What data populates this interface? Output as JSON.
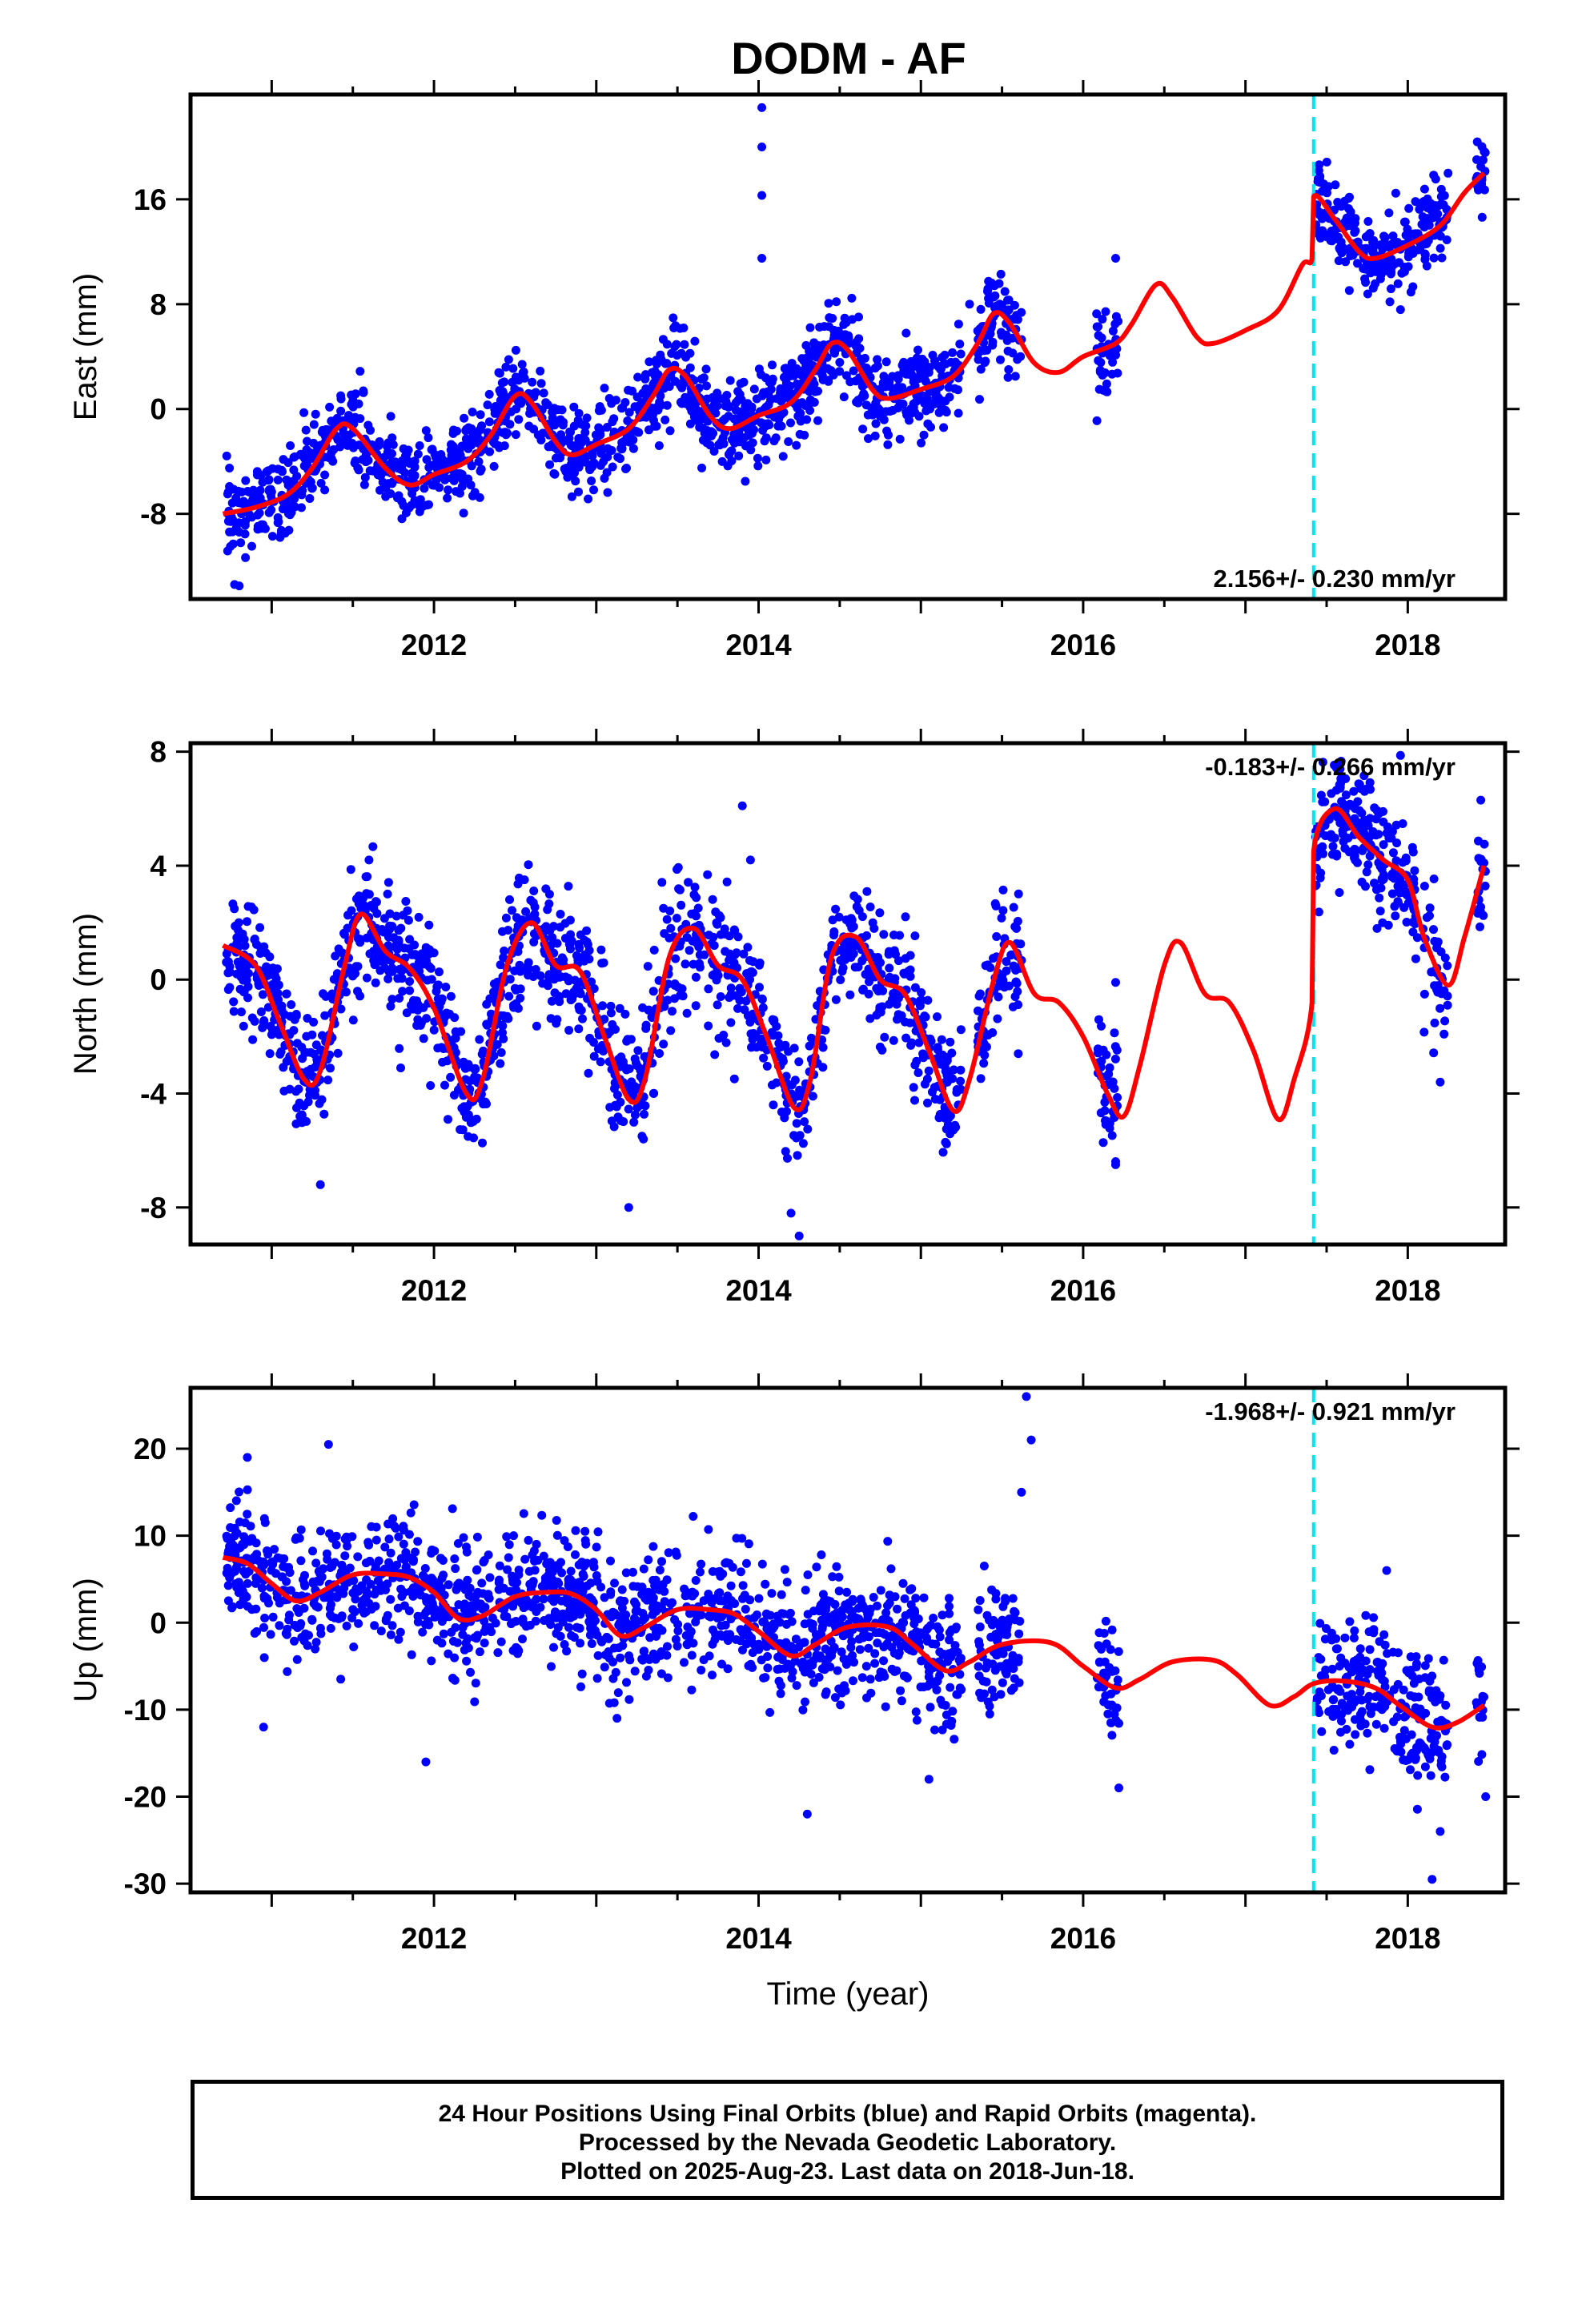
{
  "title": "DODM - AF",
  "footer": {
    "line1": "24 Hour Positions Using Final Orbits (blue) and Rapid Orbits (magenta).",
    "line2": "Processed by the Nevada Geodetic Laboratory.",
    "line3": "Plotted on 2025-Aug-23. Last data on 2018-Jun-18."
  },
  "colors": {
    "data": "#0000ff",
    "model": "#ff0000",
    "offset_line": "#00e5ee",
    "frame": "#000000"
  },
  "chart_data": [
    {
      "type": "scatter",
      "ylabel": "East (mm)",
      "xlabel": "",
      "rate": "2.156+/- 0.230 mm/yr",
      "rate_position": "bottom-right",
      "xlim": [
        2010.5,
        2018.6
      ],
      "ylim": [
        -14.5,
        24
      ],
      "yticks": [
        -8,
        0,
        8,
        16
      ],
      "xticks": [
        2012,
        2014,
        2016,
        2018
      ],
      "offset_epoch": 2017.42,
      "model": [
        [
          2010.7,
          -8.0
        ],
        [
          2010.9,
          -7.5
        ],
        [
          2011.1,
          -6.5
        ],
        [
          2011.25,
          -4.5
        ],
        [
          2011.4,
          -1.5
        ],
        [
          2011.5,
          -1.5
        ],
        [
          2011.7,
          -4.5
        ],
        [
          2011.85,
          -5.8
        ],
        [
          2012.0,
          -5.0
        ],
        [
          2012.2,
          -4.0
        ],
        [
          2012.35,
          -2.0
        ],
        [
          2012.5,
          1.0
        ],
        [
          2012.6,
          0.5
        ],
        [
          2012.75,
          -2.5
        ],
        [
          2012.85,
          -3.5
        ],
        [
          2013.0,
          -2.7
        ],
        [
          2013.2,
          -1.5
        ],
        [
          2013.35,
          1.0
        ],
        [
          2013.45,
          3.0
        ],
        [
          2013.55,
          2.5
        ],
        [
          2013.7,
          -0.5
        ],
        [
          2013.82,
          -1.5
        ],
        [
          2014.0,
          -0.5
        ],
        [
          2014.2,
          0.5
        ],
        [
          2014.35,
          3.0
        ],
        [
          2014.45,
          5.0
        ],
        [
          2014.55,
          4.5
        ],
        [
          2014.7,
          1.5
        ],
        [
          2014.8,
          0.8
        ],
        [
          2015.0,
          1.5
        ],
        [
          2015.2,
          2.5
        ],
        [
          2015.35,
          5.0
        ],
        [
          2015.45,
          7.3
        ],
        [
          2015.55,
          6.5
        ],
        [
          2015.7,
          3.5
        ],
        [
          2015.85,
          2.8
        ],
        [
          2016.0,
          4.0
        ],
        [
          2016.2,
          5.0
        ],
        [
          2016.3,
          6.5
        ],
        [
          2016.45,
          9.5
        ],
        [
          2016.55,
          8.5
        ],
        [
          2016.7,
          5.5
        ],
        [
          2016.8,
          5.0
        ],
        [
          2017.0,
          6.0
        ],
        [
          2017.2,
          7.5
        ],
        [
          2017.35,
          11.0
        ],
        [
          2017.41,
          11.5
        ],
        [
          2017.42,
          16.2
        ],
        [
          2017.55,
          14.5
        ],
        [
          2017.7,
          12.0
        ],
        [
          2017.8,
          11.5
        ],
        [
          2018.0,
          12.5
        ],
        [
          2018.2,
          14.0
        ],
        [
          2018.35,
          16.5
        ],
        [
          2018.47,
          18.0
        ]
      ],
      "series": [
        {
          "name": "",
          "kind": "dots",
          "count": 1750,
          "segments": [
            [
              2010.72,
              2015.25
            ],
            [
              2015.35,
              2015.62
            ],
            [
              2016.08,
              2016.22
            ],
            [
              2017.43,
              2018.25
            ],
            [
              2018.42,
              2018.48
            ]
          ],
          "spread": 1.6
        }
      ],
      "outliers": [
        [
          2014.02,
          23.0
        ],
        [
          2014.02,
          20.0
        ],
        [
          2014.02,
          16.3
        ],
        [
          2014.02,
          11.5
        ],
        [
          2010.8,
          -13.5
        ],
        [
          2013.65,
          -4.5
        ],
        [
          2015.3,
          8.0
        ],
        [
          2016.2,
          11.5
        ],
        [
          2016.1,
          1.5
        ],
        [
          2018.45,
          18.5
        ]
      ]
    },
    {
      "type": "scatter",
      "ylabel": "North (mm)",
      "xlabel": "",
      "rate": "-0.183+/- 0.266 mm/yr",
      "rate_position": "top-right",
      "xlim": [
        2010.5,
        2018.6
      ],
      "ylim": [
        -9.3,
        8.3
      ],
      "yticks": [
        -8,
        -4,
        0,
        4,
        8
      ],
      "xticks": [
        2012,
        2014,
        2016,
        2018
      ],
      "offset_epoch": 2017.42,
      "model": [
        [
          2010.7,
          1.2
        ],
        [
          2010.9,
          0.5
        ],
        [
          2011.05,
          -1.5
        ],
        [
          2011.2,
          -3.5
        ],
        [
          2011.3,
          -3.2
        ],
        [
          2011.45,
          0.5
        ],
        [
          2011.55,
          2.3
        ],
        [
          2011.7,
          1.0
        ],
        [
          2011.85,
          0.4
        ],
        [
          2012.0,
          -1.0
        ],
        [
          2012.2,
          -4.0
        ],
        [
          2012.3,
          -3.5
        ],
        [
          2012.45,
          0.5
        ],
        [
          2012.6,
          2.0
        ],
        [
          2012.75,
          0.5
        ],
        [
          2012.9,
          0.3
        ],
        [
          2013.05,
          -2.0
        ],
        [
          2013.2,
          -4.2
        ],
        [
          2013.3,
          -3.5
        ],
        [
          2013.45,
          0.8
        ],
        [
          2013.6,
          1.8
        ],
        [
          2013.75,
          0.5
        ],
        [
          2013.9,
          0.0
        ],
        [
          2014.05,
          -2.0
        ],
        [
          2014.22,
          -4.5
        ],
        [
          2014.32,
          -3.5
        ],
        [
          2014.45,
          0.8
        ],
        [
          2014.6,
          1.5
        ],
        [
          2014.75,
          0.0
        ],
        [
          2014.9,
          -0.5
        ],
        [
          2015.05,
          -2.5
        ],
        [
          2015.2,
          -4.6
        ],
        [
          2015.3,
          -3.5
        ],
        [
          2015.45,
          0.0
        ],
        [
          2015.55,
          1.3
        ],
        [
          2015.7,
          -0.5
        ],
        [
          2015.85,
          -0.8
        ],
        [
          2016.0,
          -2.0
        ],
        [
          2016.15,
          -4.0
        ],
        [
          2016.25,
          -4.8
        ],
        [
          2016.35,
          -3.0
        ],
        [
          2016.5,
          0.5
        ],
        [
          2016.6,
          1.3
        ],
        [
          2016.75,
          -0.5
        ],
        [
          2016.9,
          -0.8
        ],
        [
          2017.05,
          -2.5
        ],
        [
          2017.2,
          -4.9
        ],
        [
          2017.3,
          -3.5
        ],
        [
          2017.41,
          -0.8
        ],
        [
          2017.42,
          4.5
        ],
        [
          2017.55,
          6.0
        ],
        [
          2017.7,
          5.0
        ],
        [
          2017.85,
          4.2
        ],
        [
          2018.0,
          3.5
        ],
        [
          2018.1,
          1.5
        ],
        [
          2018.25,
          -0.2
        ],
        [
          2018.35,
          1.5
        ],
        [
          2018.47,
          4.0
        ]
      ],
      "series": [
        {
          "name": "",
          "kind": "dots",
          "count": 1750,
          "segments": [
            [
              2010.72,
              2015.25
            ],
            [
              2015.35,
              2015.62
            ],
            [
              2016.08,
              2016.22
            ],
            [
              2017.43,
              2018.25
            ],
            [
              2018.42,
              2018.48
            ]
          ],
          "spread": 1.1
        }
      ],
      "outliers": [
        [
          2013.9,
          6.1
        ],
        [
          2013.95,
          4.2
        ],
        [
          2014.25,
          -9.0
        ],
        [
          2014.2,
          -8.2
        ],
        [
          2013.2,
          -8.0
        ],
        [
          2011.3,
          -7.2
        ],
        [
          2016.2,
          -6.5
        ],
        [
          2016.2,
          -0.1
        ],
        [
          2018.45,
          6.3
        ],
        [
          2015.6,
          -2.6
        ],
        [
          2018.2,
          -3.6
        ]
      ]
    },
    {
      "type": "scatter",
      "ylabel": "Up (mm)",
      "xlabel": "Time (year)",
      "rate": "-1.968+/- 0.921 mm/yr",
      "rate_position": "top-right",
      "xlim": [
        2010.5,
        2018.6
      ],
      "ylim": [
        -31,
        27
      ],
      "yticks": [
        -30,
        -20,
        -10,
        0,
        10,
        20
      ],
      "xticks": [
        2012,
        2014,
        2016,
        2018
      ],
      "offset_epoch": 2017.42,
      "model": [
        [
          2010.7,
          7.5
        ],
        [
          2010.85,
          6.8
        ],
        [
          2011.0,
          4.5
        ],
        [
          2011.15,
          2.5
        ],
        [
          2011.3,
          3.5
        ],
        [
          2011.5,
          5.5
        ],
        [
          2011.7,
          5.6
        ],
        [
          2011.85,
          5.2
        ],
        [
          2012.0,
          3.5
        ],
        [
          2012.15,
          0.5
        ],
        [
          2012.3,
          0.8
        ],
        [
          2012.5,
          3.0
        ],
        [
          2012.7,
          3.5
        ],
        [
          2012.85,
          3.3
        ],
        [
          2013.0,
          1.5
        ],
        [
          2013.15,
          -1.5
        ],
        [
          2013.3,
          -0.5
        ],
        [
          2013.5,
          1.5
        ],
        [
          2013.7,
          1.5
        ],
        [
          2013.85,
          1.0
        ],
        [
          2014.0,
          -1.0
        ],
        [
          2014.2,
          -3.8
        ],
        [
          2014.35,
          -2.5
        ],
        [
          2014.55,
          -0.5
        ],
        [
          2014.8,
          -0.5
        ],
        [
          2014.95,
          -2.5
        ],
        [
          2015.15,
          -5.5
        ],
        [
          2015.3,
          -4.5
        ],
        [
          2015.5,
          -2.5
        ],
        [
          2015.8,
          -2.3
        ],
        [
          2016.0,
          -5.0
        ],
        [
          2016.2,
          -7.5
        ],
        [
          2016.35,
          -6.5
        ],
        [
          2016.55,
          -4.5
        ],
        [
          2016.8,
          -4.3
        ],
        [
          2016.95,
          -6.0
        ],
        [
          2017.15,
          -9.5
        ],
        [
          2017.3,
          -8.5
        ],
        [
          2017.42,
          -7.0
        ],
        [
          2017.6,
          -6.7
        ],
        [
          2017.8,
          -7.5
        ],
        [
          2017.95,
          -9.5
        ],
        [
          2018.15,
          -12.0
        ],
        [
          2018.3,
          -11.5
        ],
        [
          2018.47,
          -9.5
        ]
      ],
      "series": [
        {
          "name": "",
          "kind": "dots",
          "count": 1750,
          "segments": [
            [
              2010.72,
              2015.25
            ],
            [
              2015.35,
              2015.62
            ],
            [
              2016.08,
              2016.22
            ],
            [
              2017.43,
              2018.25
            ],
            [
              2018.42,
              2018.48
            ]
          ],
          "spread": 3.6
        }
      ],
      "outliers": [
        [
          2015.65,
          26.0
        ],
        [
          2015.68,
          21.0
        ],
        [
          2015.62,
          15.0
        ],
        [
          2011.35,
          20.5
        ],
        [
          2010.85,
          19.0
        ],
        [
          2010.95,
          -12.0
        ],
        [
          2011.95,
          -16.0
        ],
        [
          2014.3,
          -22.0
        ],
        [
          2015.05,
          -18.0
        ],
        [
          2018.15,
          -29.5
        ],
        [
          2018.2,
          -24.0
        ],
        [
          2016.22,
          -19.0
        ],
        [
          2017.87,
          6.0
        ],
        [
          2018.48,
          -20.0
        ]
      ]
    }
  ]
}
